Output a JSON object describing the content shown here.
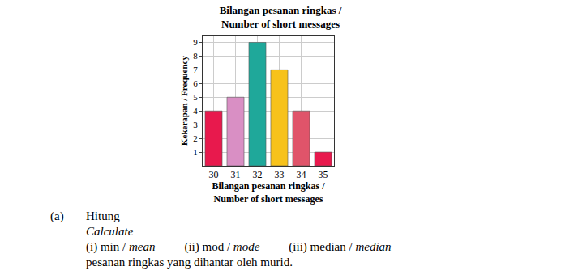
{
  "chart_data": {
    "type": "bar",
    "title": "Bilangan pesanan ringkas /\nNumber of short messages",
    "x_label": "Bilangan pesanan ringkas /\nNumber of short messages",
    "y_label": "Kekerapan / Frequency",
    "categories": [
      "30",
      "31",
      "32",
      "33",
      "34",
      "35"
    ],
    "values": [
      4,
      5,
      9,
      7,
      4,
      1
    ],
    "colors": [
      "#e8194d",
      "#d98fc4",
      "#1fa89a",
      "#f7c21b",
      "#e0546a",
      "#e8194d"
    ],
    "ylim": [
      0,
      9.5
    ],
    "yticks": [
      1,
      2,
      3,
      4,
      5,
      6,
      7,
      8,
      9
    ],
    "grid": true
  },
  "question": {
    "label": "(a)",
    "heading": "Hitung",
    "heading_en": "Calculate",
    "items": [
      [
        "(i) min / ",
        "mean"
      ],
      [
        "(ii) mod / ",
        "mode"
      ],
      [
        "(iii) median / ",
        "median"
      ]
    ],
    "closing": "pesanan ringkas yang dihantar oleh murid."
  }
}
